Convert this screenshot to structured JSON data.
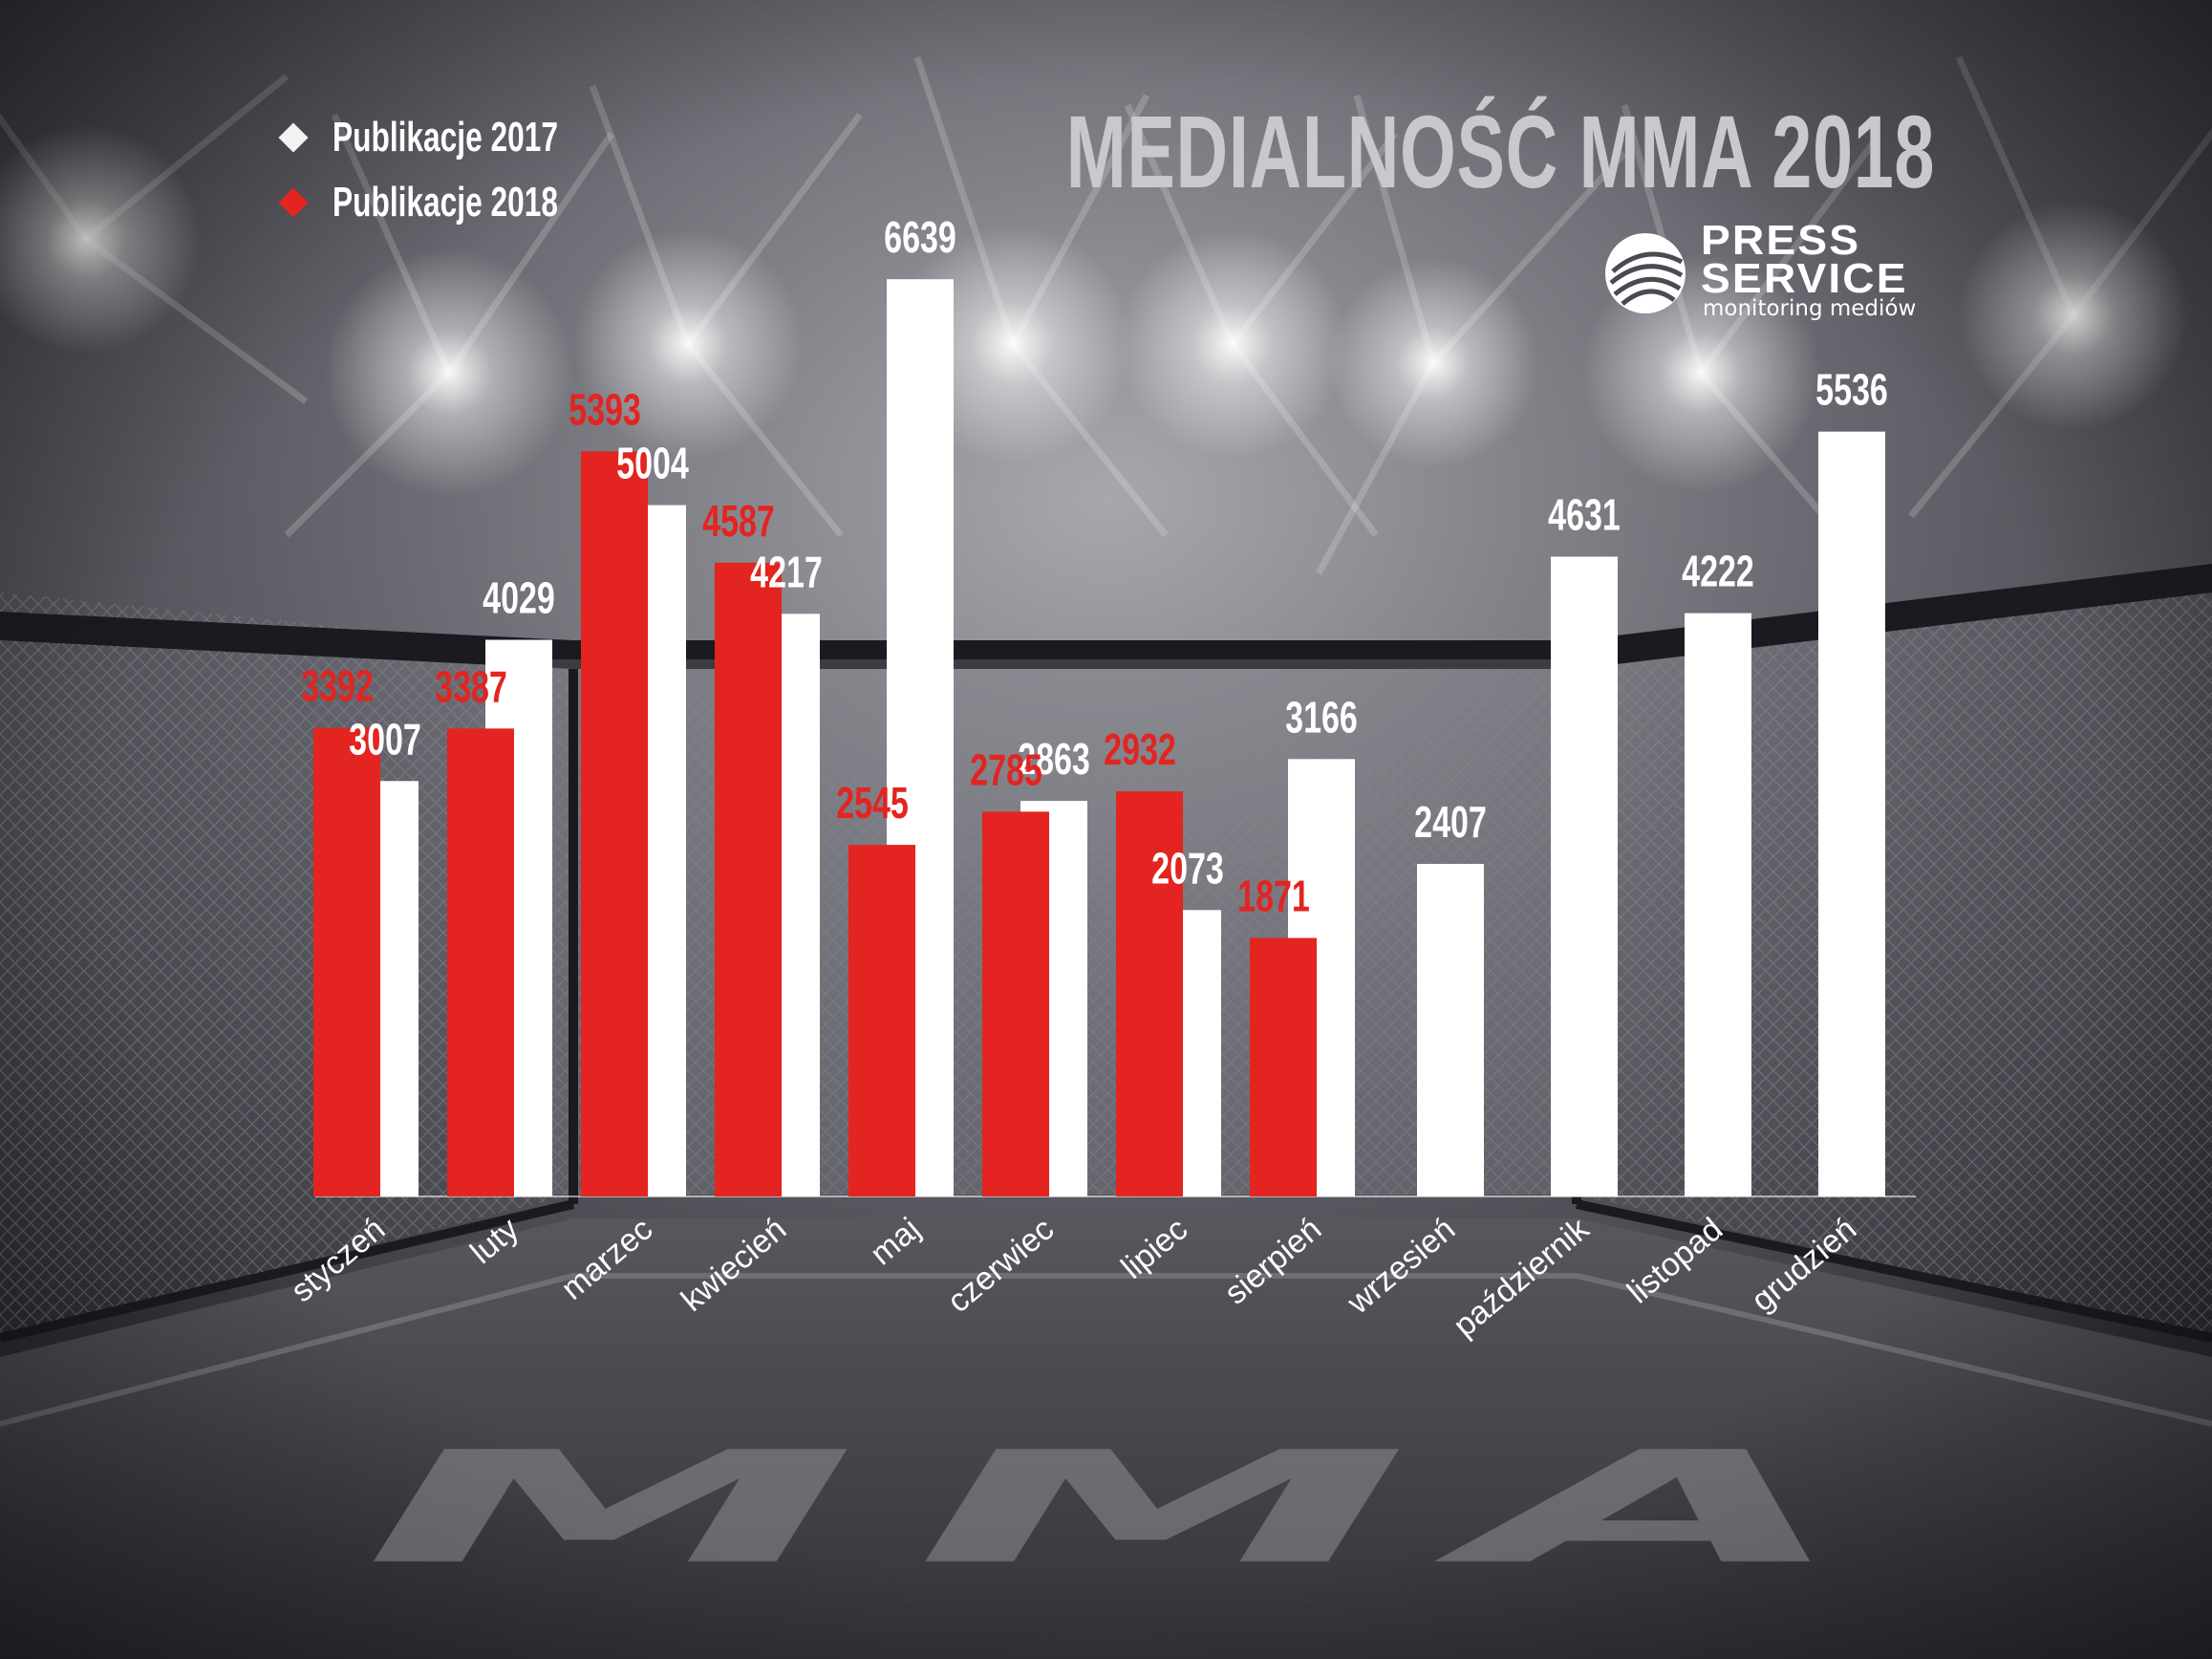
{
  "title": "MEDIALNOŚĆ MMA 2018",
  "brand": {
    "name_line1": "PRESS",
    "name_line2": "SERVICE",
    "tagline": "monitoring mediów"
  },
  "watermark": "MMA",
  "colors": {
    "series_2017": "#ffffff",
    "series_2018": "#e32420",
    "title": "#c9c9cc",
    "background": "#3c3b42"
  },
  "legend": [
    {
      "label": "Publikacje 2017",
      "color": "#ffffff"
    },
    {
      "label": "Publikacje 2018",
      "color": "#e32420"
    }
  ],
  "chart_data": {
    "type": "bar",
    "title": "MEDIALNOŚĆ MMA 2018",
    "xlabel": "",
    "ylabel": "",
    "ylim": [
      0,
      7000
    ],
    "grid": false,
    "legend_position": "top-left",
    "categories": [
      "styczeń",
      "luty",
      "marzec",
      "kwiecień",
      "maj",
      "czerwiec",
      "lipiec",
      "sierpień",
      "wrzesień",
      "październik",
      "listopad",
      "grudzień"
    ],
    "series": [
      {
        "name": "Publikacje 2018",
        "color": "#e32420",
        "values": [
          3392,
          3387,
          5393,
          4587,
          2545,
          2785,
          2932,
          1871,
          null,
          null,
          null,
          null
        ]
      },
      {
        "name": "Publikacje 2017",
        "color": "#ffffff",
        "values": [
          3007,
          4029,
          5004,
          4217,
          6639,
          2863,
          2073,
          3166,
          2407,
          4631,
          4222,
          5536
        ]
      }
    ]
  }
}
